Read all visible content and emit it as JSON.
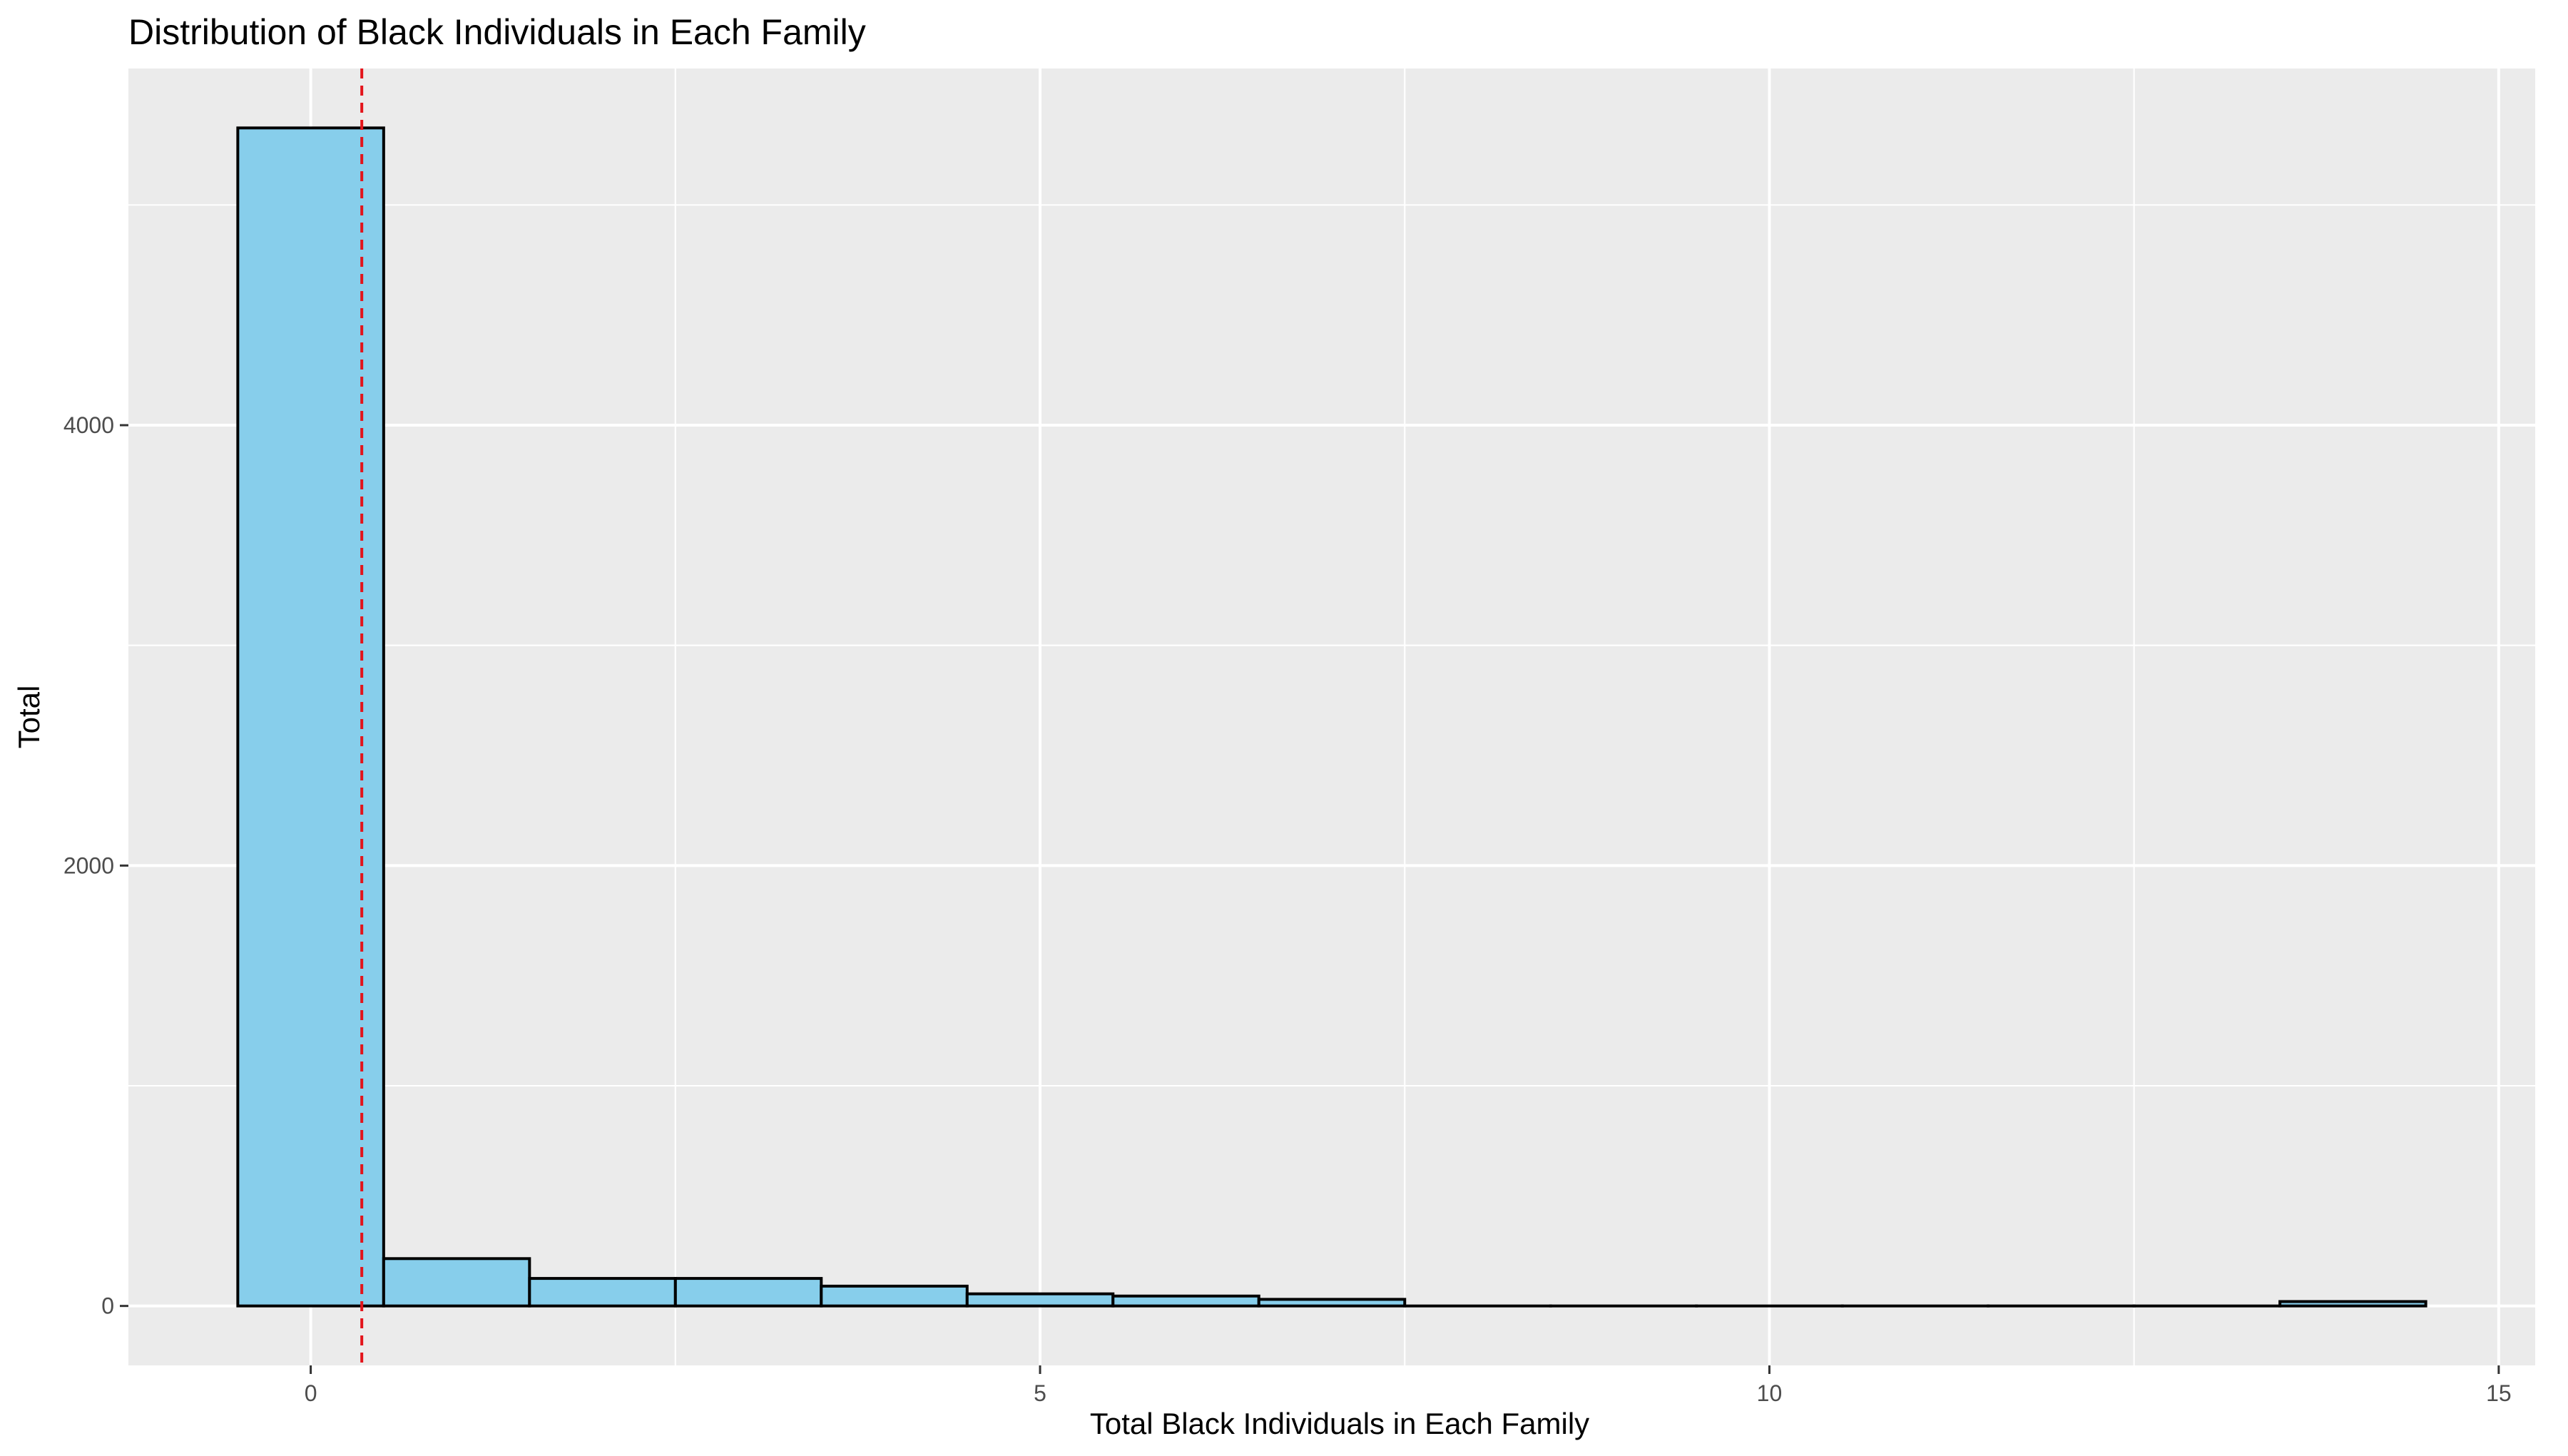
{
  "chart_data": {
    "type": "bar",
    "subtype": "histogram",
    "title": "Distribution of Black Individuals in Each Family",
    "xlabel": "Total Black Individuals in Each Family",
    "ylabel": "Total",
    "bin_width": 1,
    "bins": [
      {
        "x": 0,
        "count": 5350
      },
      {
        "x": 1,
        "count": 215
      },
      {
        "x": 2,
        "count": 125
      },
      {
        "x": 3,
        "count": 125
      },
      {
        "x": 4,
        "count": 90
      },
      {
        "x": 5,
        "count": 55
      },
      {
        "x": 6,
        "count": 45
      },
      {
        "x": 7,
        "count": 30
      },
      {
        "x": 8,
        "count": 0
      },
      {
        "x": 9,
        "count": 0
      },
      {
        "x": 10,
        "count": 0
      },
      {
        "x": 11,
        "count": 0
      },
      {
        "x": 12,
        "count": 0
      },
      {
        "x": 13,
        "count": 0
      },
      {
        "x": 14,
        "count": 20
      }
    ],
    "mean_line": {
      "x": 0.35,
      "style": "dashed"
    },
    "xlim": [
      -1.25,
      15.25
    ],
    "ylim": [
      -270,
      5620
    ],
    "x_ticks": [
      0,
      5,
      10,
      15
    ],
    "x_tick_labels": [
      "0",
      "5",
      "10",
      "15"
    ],
    "y_ticks": [
      0,
      2000,
      4000
    ],
    "y_tick_labels": [
      "0",
      "2000",
      "4000"
    ],
    "grid": true,
    "legend": "none",
    "colors": {
      "bar_fill": "#87CEEB",
      "bar_stroke": "#000000",
      "mean_line": "#E3141B",
      "panel_background": "#EBEBEB",
      "grid": "#FFFFFF"
    }
  }
}
